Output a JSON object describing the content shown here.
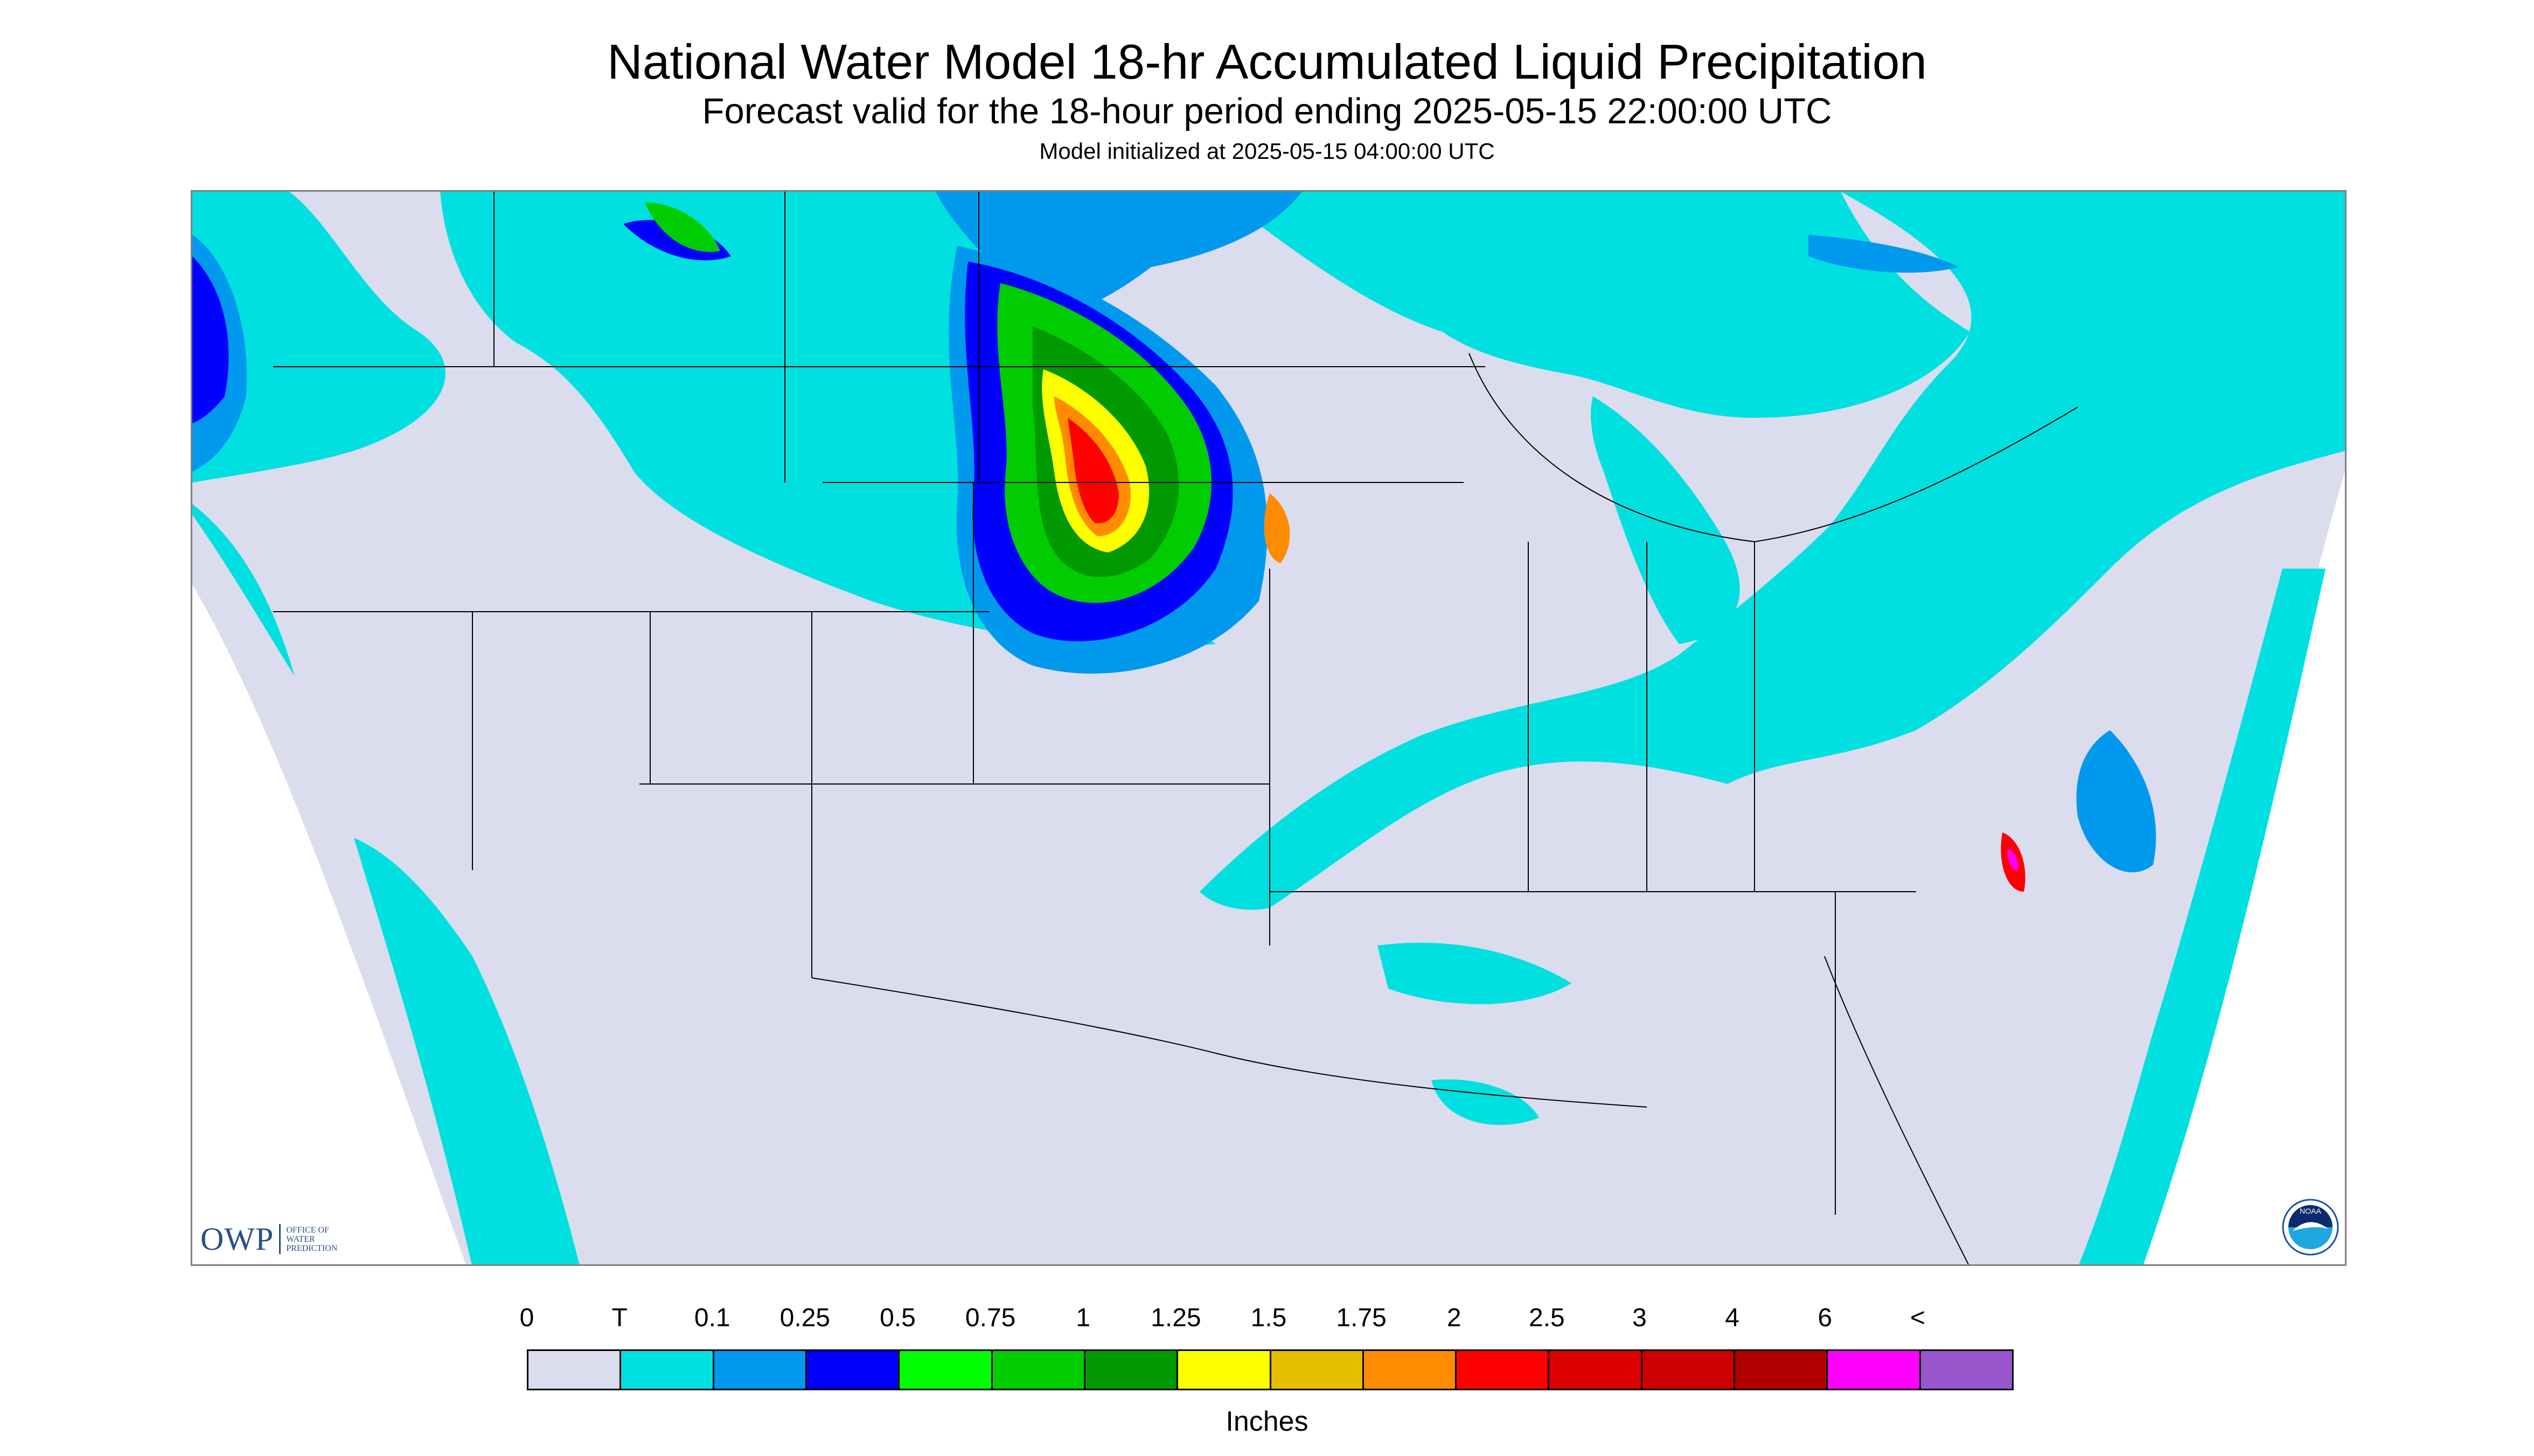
{
  "title": "National Water Model 18-hr Accumulated Liquid Precipitation",
  "subtitle": "Forecast valid for the 18-hour period ending 2025-05-15 22:00:00 UTC",
  "init_line": "Model initialized at 2025-05-15 04:00:00 UTC",
  "logos": {
    "owp_letters": "OWP",
    "owp_text": "Office of Water Prediction",
    "noaa_text": "NOAA"
  },
  "legend": {
    "unit": "Inches",
    "tick_labels": [
      "0",
      "T",
      "0.1",
      "0.25",
      "0.5",
      "0.75",
      "1",
      "1.25",
      "1.5",
      "1.75",
      "2",
      "2.5",
      "3",
      "4",
      "6",
      "<"
    ],
    "colors": [
      "#dcdcef",
      "#00e0e0",
      "#0099ee",
      "#0000ff",
      "#00ff00",
      "#00cc00",
      "#009900",
      "#ffff00",
      "#e6be00",
      "#ff8c00",
      "#ff0000",
      "#dd0000",
      "#cc0000",
      "#b20000",
      "#ff00ff",
      "#9955cc"
    ]
  },
  "map": {
    "background_color": "#dcdcef",
    "outline_color": "#000000",
    "projection_note_color": "#ffffff"
  }
}
